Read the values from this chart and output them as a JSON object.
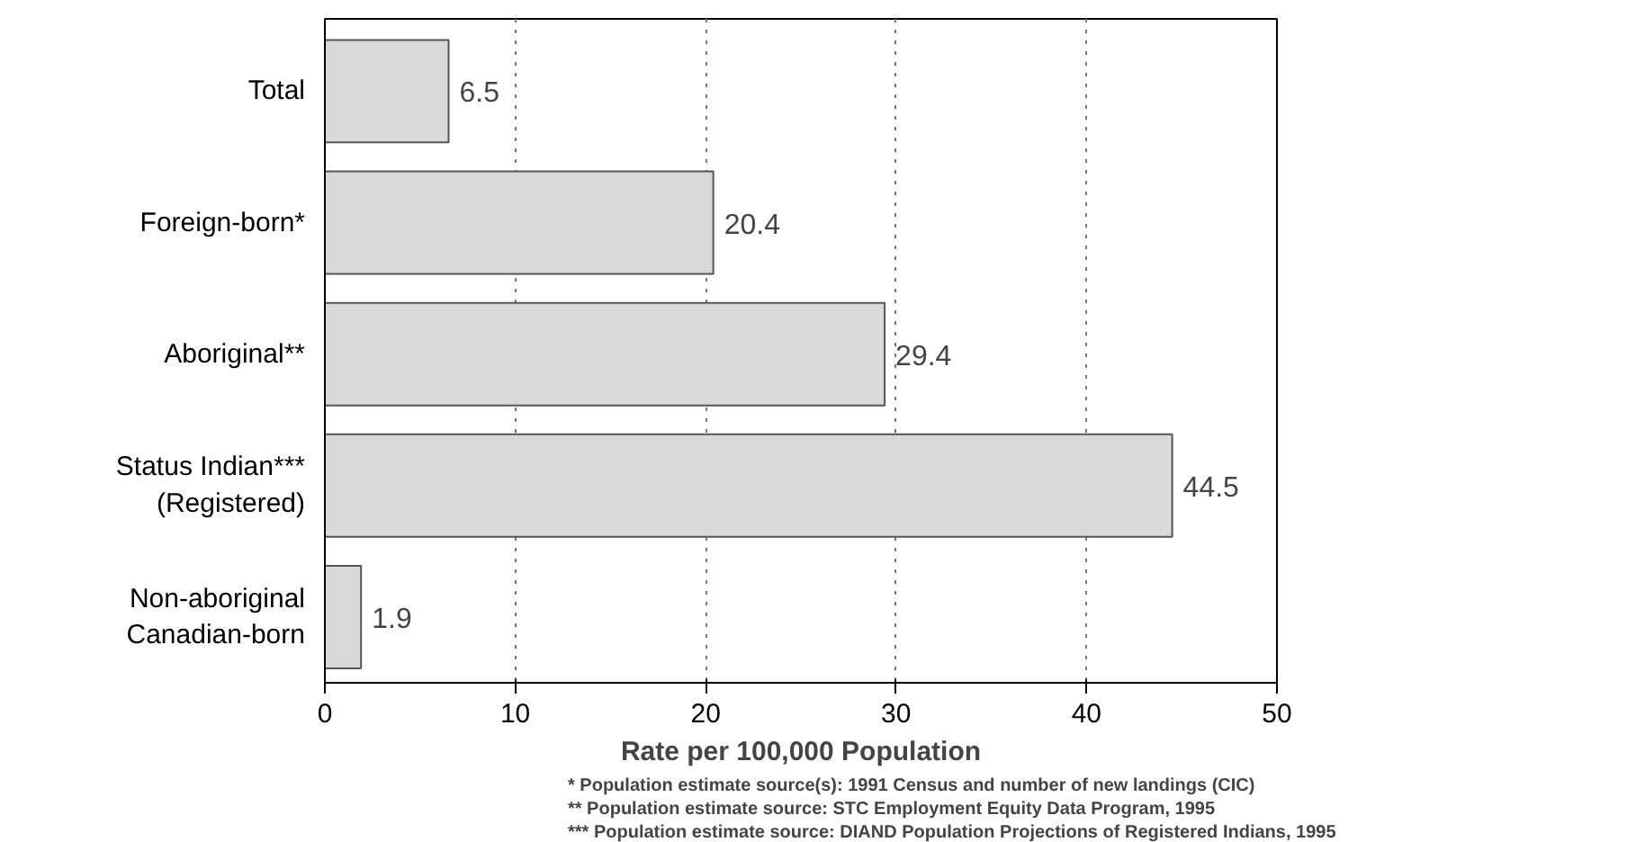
{
  "chart_data": {
    "type": "bar",
    "orientation": "horizontal",
    "xlabel": "Rate per 100,000 Population",
    "categories": [
      "Total",
      "Foreign-born*",
      "Aboriginal**",
      "Status Indian***\n(Registered)",
      "Non-aboriginal\nCanadian-born"
    ],
    "values": [
      6.5,
      20.4,
      29.4,
      44.5,
      1.9
    ],
    "color": "#d9d9d9",
    "xlim": [
      0,
      50
    ],
    "xticks": [
      0,
      10,
      20,
      30,
      40,
      50
    ],
    "grid": "x",
    "data_labels": true,
    "annotations": [
      "*    Population estimate source(s): 1991 Census and number of new landings (CIC)",
      "**   Population estimate source: STC Employment Equity Data Program, 1995",
      "***  Population estimate source: DIAND Population Projections of Registered Indians, 1995"
    ]
  }
}
